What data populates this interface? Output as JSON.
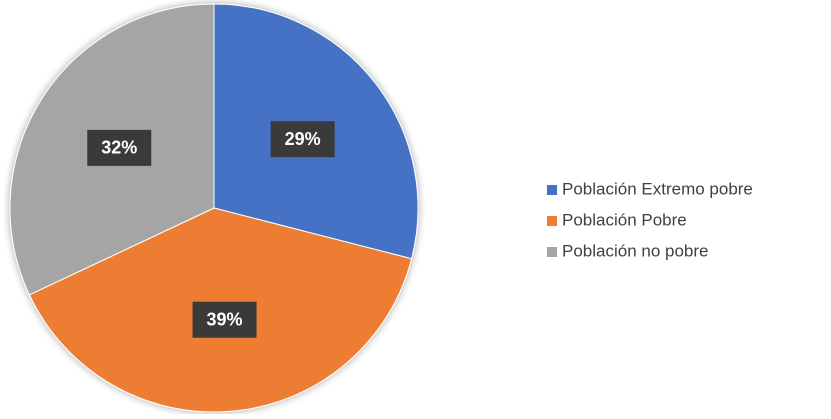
{
  "chart_data": {
    "type": "pie",
    "categories": [
      "Población Extremo pobre",
      "Población Pobre",
      "Población no pobre"
    ],
    "values": [
      29,
      39,
      32
    ],
    "value_labels": [
      "29%",
      "39%",
      "32%"
    ],
    "colors": [
      "#4472c4",
      "#ed7d31",
      "#a5a5a5"
    ],
    "legend": "right"
  }
}
